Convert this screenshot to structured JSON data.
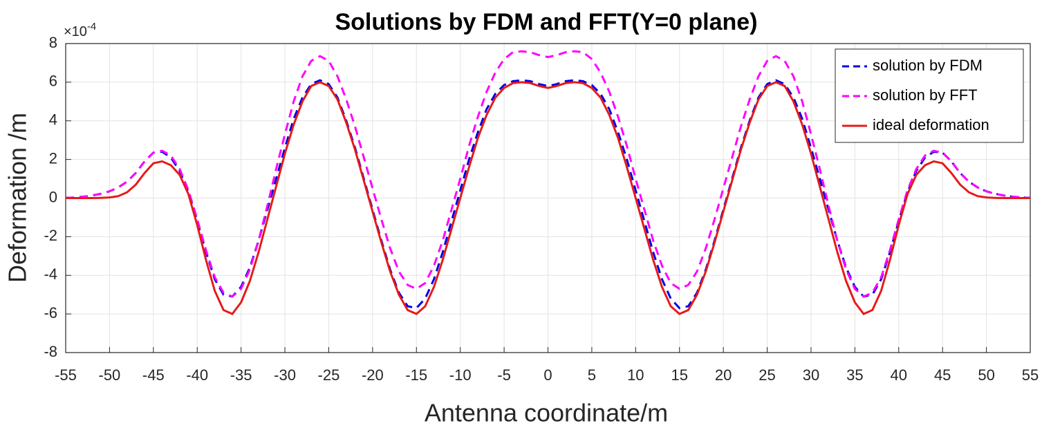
{
  "chart_data": {
    "type": "line",
    "title": "Solutions by FDM and FFT(Y=0 plane)",
    "x_label": "Antenna coordinate/m",
    "y_label": "Deformation /m",
    "y_multiplier": "×10",
    "y_multiplier_exponent": "-4",
    "xlim": [
      -55,
      55
    ],
    "ylim": [
      -8,
      8
    ],
    "xticks": [
      -55,
      -50,
      -45,
      -40,
      -35,
      -30,
      -25,
      -20,
      -15,
      -10,
      -5,
      0,
      5,
      10,
      15,
      20,
      25,
      30,
      35,
      40,
      45,
      50,
      55
    ],
    "yticks": [
      -8,
      -6,
      -4,
      -2,
      0,
      2,
      4,
      6,
      8
    ],
    "grid": true,
    "legend": "top-right",
    "x": [
      -55,
      -54,
      -53,
      -52,
      -51,
      -50,
      -49,
      -48,
      -47,
      -46,
      -45,
      -44,
      -43,
      -42,
      -41,
      -40,
      -39,
      -38,
      -37,
      -36,
      -35,
      -34,
      -33,
      -32,
      -31,
      -30,
      -29,
      -28,
      -27,
      -26,
      -25,
      -24,
      -23,
      -22,
      -21,
      -20,
      -19,
      -18,
      -17,
      -16,
      -15,
      -14,
      -13,
      -12,
      -11,
      -10,
      -9,
      -8,
      -7,
      -6,
      -5,
      -4,
      -3,
      -2,
      -1,
      0,
      1,
      2,
      3,
      4,
      5,
      6,
      7,
      8,
      9,
      10,
      11,
      12,
      13,
      14,
      15,
      16,
      17,
      18,
      19,
      20,
      21,
      22,
      23,
      24,
      25,
      26,
      27,
      28,
      29,
      30,
      31,
      32,
      33,
      34,
      35,
      36,
      37,
      38,
      39,
      40,
      41,
      42,
      43,
      44,
      45,
      46,
      47,
      48,
      49,
      50,
      51,
      52,
      53,
      54,
      55
    ],
    "series": [
      {
        "name": "solution by FDM",
        "color": "#0000e6",
        "style": "dashed",
        "values": [
          0.01,
          0.03,
          0.07,
          0.13,
          0.22,
          0.35,
          0.55,
          0.85,
          1.3,
          1.9,
          2.35,
          2.4,
          2.1,
          1.4,
          0.3,
          -1.2,
          -2.8,
          -4.2,
          -5.0,
          -5.1,
          -4.6,
          -3.6,
          -2.2,
          -0.6,
          1.0,
          2.6,
          4.1,
          5.2,
          5.9,
          6.1,
          5.9,
          5.2,
          4.0,
          2.6,
          1.0,
          -0.6,
          -2.2,
          -3.7,
          -4.9,
          -5.6,
          -5.7,
          -5.2,
          -4.2,
          -2.8,
          -1.2,
          0.4,
          2.0,
          3.4,
          4.6,
          5.4,
          5.85,
          6.05,
          6.1,
          6.05,
          5.9,
          5.8,
          5.9,
          6.05,
          6.1,
          6.05,
          5.85,
          5.4,
          4.6,
          3.4,
          2.0,
          0.4,
          -1.2,
          -2.8,
          -4.2,
          -5.2,
          -5.7,
          -5.6,
          -4.9,
          -3.7,
          -2.2,
          -0.6,
          1.0,
          2.6,
          4.0,
          5.2,
          5.9,
          6.1,
          5.9,
          5.2,
          4.1,
          2.6,
          1.0,
          -0.6,
          -2.2,
          -3.6,
          -4.6,
          -5.1,
          -5.0,
          -4.2,
          -2.8,
          -1.2,
          0.3,
          1.4,
          2.1,
          2.4,
          2.35,
          1.9,
          1.3,
          0.85,
          0.55,
          0.35,
          0.22,
          0.13,
          0.07,
          0.03,
          0.01
        ]
      },
      {
        "name": "solution by FFT",
        "color": "#ff00ff",
        "style": "dashed",
        "values": [
          0.01,
          0.03,
          0.07,
          0.13,
          0.22,
          0.35,
          0.55,
          0.85,
          1.3,
          1.9,
          2.35,
          2.45,
          2.2,
          1.5,
          0.4,
          -1.1,
          -2.7,
          -4.1,
          -4.9,
          -5.1,
          -4.7,
          -3.7,
          -2.2,
          -0.4,
          1.5,
          3.3,
          5.0,
          6.3,
          7.1,
          7.35,
          7.1,
          6.3,
          5.1,
          3.7,
          2.1,
          0.5,
          -1.1,
          -2.6,
          -3.8,
          -4.5,
          -4.7,
          -4.4,
          -3.5,
          -2.2,
          -0.6,
          1.0,
          2.7,
          4.2,
          5.5,
          6.5,
          7.2,
          7.55,
          7.6,
          7.55,
          7.4,
          7.3,
          7.4,
          7.55,
          7.6,
          7.55,
          7.2,
          6.5,
          5.5,
          4.2,
          2.7,
          1.0,
          -0.6,
          -2.2,
          -3.5,
          -4.4,
          -4.7,
          -4.5,
          -3.8,
          -2.6,
          -1.1,
          0.5,
          2.1,
          3.7,
          5.1,
          6.3,
          7.1,
          7.35,
          7.1,
          6.3,
          5.0,
          3.3,
          1.5,
          -0.4,
          -2.2,
          -3.7,
          -4.7,
          -5.1,
          -4.9,
          -4.1,
          -2.7,
          -1.1,
          0.4,
          1.5,
          2.2,
          2.45,
          2.35,
          1.9,
          1.3,
          0.85,
          0.55,
          0.35,
          0.22,
          0.13,
          0.07,
          0.03,
          0.01
        ]
      },
      {
        "name": "ideal deformation",
        "color": "#e61a1a",
        "style": "solid",
        "values": [
          0,
          0,
          0,
          0,
          0.01,
          0.03,
          0.1,
          0.3,
          0.7,
          1.3,
          1.8,
          1.9,
          1.7,
          1.2,
          0.2,
          -1.4,
          -3.2,
          -4.8,
          -5.8,
          -6.0,
          -5.4,
          -4.3,
          -2.8,
          -1.1,
          0.6,
          2.3,
          3.8,
          5.0,
          5.8,
          6.0,
          5.8,
          5.1,
          3.9,
          2.5,
          0.9,
          -0.7,
          -2.3,
          -3.8,
          -5.0,
          -5.8,
          -6.0,
          -5.6,
          -4.6,
          -3.2,
          -1.6,
          0,
          1.6,
          3.1,
          4.3,
          5.2,
          5.7,
          5.95,
          6.0,
          5.95,
          5.8,
          5.7,
          5.8,
          5.95,
          6.0,
          5.95,
          5.7,
          5.2,
          4.3,
          3.1,
          1.6,
          0,
          -1.6,
          -3.2,
          -4.6,
          -5.6,
          -6.0,
          -5.8,
          -5.0,
          -3.8,
          -2.3,
          -0.7,
          0.9,
          2.5,
          3.9,
          5.1,
          5.8,
          6.0,
          5.8,
          5.0,
          3.8,
          2.3,
          0.6,
          -1.1,
          -2.8,
          -4.3,
          -5.4,
          -6.0,
          -5.8,
          -4.8,
          -3.2,
          -1.4,
          0.2,
          1.2,
          1.7,
          1.9,
          1.8,
          1.3,
          0.7,
          0.3,
          0.1,
          0.03,
          0.01,
          0,
          0,
          0,
          0
        ]
      }
    ]
  }
}
